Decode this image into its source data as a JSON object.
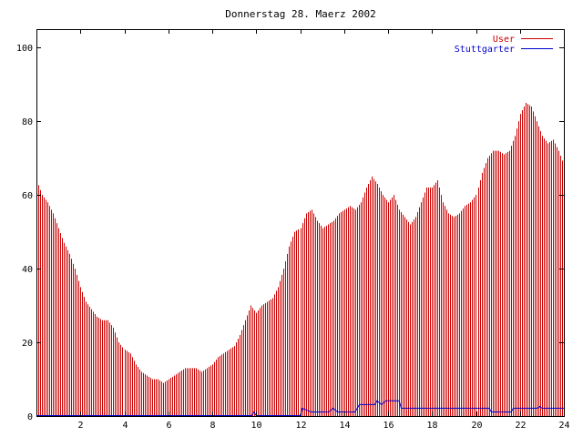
{
  "chart_data": {
    "type": "bar",
    "title": "Donnerstag 28. Maerz 2002",
    "xlabel": "",
    "ylabel": "",
    "xlim": [
      0,
      24
    ],
    "ylim": [
      0,
      105
    ],
    "x_ticks": [
      "2",
      "4",
      "6",
      "8",
      "10",
      "12",
      "14",
      "16",
      "18",
      "20",
      "22",
      "24"
    ],
    "y_ticks": [
      "0",
      "20",
      "40",
      "60",
      "80",
      "100"
    ],
    "legend_position": "top-right",
    "series": [
      {
        "name": "User",
        "style": "impulses",
        "color": "#cc0000",
        "points": [
          [
            0.0,
            64
          ],
          [
            0.25,
            60
          ],
          [
            0.5,
            58
          ],
          [
            0.75,
            55
          ],
          [
            1.0,
            51
          ],
          [
            1.25,
            47
          ],
          [
            1.5,
            44
          ],
          [
            1.75,
            40
          ],
          [
            2.0,
            35
          ],
          [
            2.25,
            31
          ],
          [
            2.5,
            29
          ],
          [
            2.75,
            27
          ],
          [
            3.0,
            26
          ],
          [
            3.25,
            26
          ],
          [
            3.5,
            24
          ],
          [
            3.75,
            20
          ],
          [
            4.0,
            18
          ],
          [
            4.25,
            17
          ],
          [
            4.5,
            14
          ],
          [
            4.75,
            12
          ],
          [
            5.0,
            11
          ],
          [
            5.25,
            10
          ],
          [
            5.5,
            10
          ],
          [
            5.75,
            9
          ],
          [
            6.0,
            10
          ],
          [
            6.25,
            11
          ],
          [
            6.5,
            12
          ],
          [
            6.75,
            13
          ],
          [
            7.0,
            13
          ],
          [
            7.25,
            13
          ],
          [
            7.5,
            12
          ],
          [
            7.75,
            13
          ],
          [
            8.0,
            14
          ],
          [
            8.25,
            16
          ],
          [
            8.5,
            17
          ],
          [
            8.75,
            18
          ],
          [
            9.0,
            19
          ],
          [
            9.25,
            22
          ],
          [
            9.5,
            26
          ],
          [
            9.75,
            30
          ],
          [
            10.0,
            28
          ],
          [
            10.25,
            30
          ],
          [
            10.5,
            31
          ],
          [
            10.75,
            32
          ],
          [
            11.0,
            35
          ],
          [
            11.25,
            40
          ],
          [
            11.5,
            46
          ],
          [
            11.75,
            50
          ],
          [
            12.0,
            51
          ],
          [
            12.25,
            55
          ],
          [
            12.5,
            56
          ],
          [
            12.75,
            53
          ],
          [
            13.0,
            51
          ],
          [
            13.25,
            52
          ],
          [
            13.5,
            53
          ],
          [
            13.75,
            55
          ],
          [
            14.0,
            56
          ],
          [
            14.25,
            57
          ],
          [
            14.5,
            56
          ],
          [
            14.75,
            58
          ],
          [
            15.0,
            62
          ],
          [
            15.25,
            65
          ],
          [
            15.5,
            63
          ],
          [
            15.75,
            60
          ],
          [
            16.0,
            58
          ],
          [
            16.25,
            60
          ],
          [
            16.5,
            56
          ],
          [
            16.75,
            54
          ],
          [
            17.0,
            52
          ],
          [
            17.25,
            54
          ],
          [
            17.5,
            58
          ],
          [
            17.75,
            62
          ],
          [
            18.0,
            62
          ],
          [
            18.25,
            64
          ],
          [
            18.5,
            58
          ],
          [
            18.75,
            55
          ],
          [
            19.0,
            54
          ],
          [
            19.25,
            55
          ],
          [
            19.5,
            57
          ],
          [
            19.75,
            58
          ],
          [
            20.0,
            60
          ],
          [
            20.25,
            66
          ],
          [
            20.5,
            70
          ],
          [
            20.75,
            72
          ],
          [
            21.0,
            72
          ],
          [
            21.25,
            71
          ],
          [
            21.5,
            72
          ],
          [
            21.75,
            76
          ],
          [
            22.0,
            82
          ],
          [
            22.25,
            85
          ],
          [
            22.5,
            84
          ],
          [
            22.75,
            80
          ],
          [
            23.0,
            76
          ],
          [
            23.25,
            74
          ],
          [
            23.5,
            75
          ],
          [
            23.75,
            72
          ],
          [
            24.0,
            68
          ]
        ]
      },
      {
        "name": "Stuttgarter",
        "style": "lines",
        "color": "#0000cc",
        "points": [
          [
            0,
            0
          ],
          [
            9.8,
            0
          ],
          [
            9.9,
            1
          ],
          [
            10.0,
            0
          ],
          [
            12.0,
            0
          ],
          [
            12.1,
            2
          ],
          [
            12.3,
            1.5
          ],
          [
            12.5,
            1
          ],
          [
            13.3,
            1
          ],
          [
            13.5,
            2
          ],
          [
            13.7,
            1
          ],
          [
            14.5,
            1
          ],
          [
            14.7,
            3
          ],
          [
            15.4,
            3
          ],
          [
            15.5,
            4
          ],
          [
            15.7,
            3
          ],
          [
            15.9,
            4
          ],
          [
            16.5,
            4
          ],
          [
            16.6,
            2
          ],
          [
            20.6,
            2
          ],
          [
            20.7,
            1
          ],
          [
            21.6,
            1
          ],
          [
            21.7,
            2
          ],
          [
            22.8,
            2
          ],
          [
            22.9,
            2.5
          ],
          [
            23.0,
            2
          ],
          [
            24.0,
            2
          ]
        ]
      }
    ]
  }
}
